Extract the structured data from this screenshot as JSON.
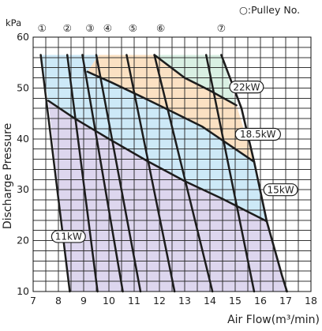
{
  "page": {
    "legend": "○:Pulley No."
  },
  "colors": {
    "plot_background": "#ffffff",
    "grid": "#2b2b2b",
    "line": "#1d1d1d",
    "region_11kw": "#ddd6ee",
    "region_15kw": "#cde9f7",
    "region_18_5kw": "#fbe1c3",
    "region_22kw": "#d9f0e3",
    "badge_fill": "#ffffff"
  },
  "chart_data": {
    "type": "line",
    "xlabel": "Air Flow(m³/min)",
    "ylabel": "Discharge Pressure",
    "unit_label": "kPa",
    "xlim": [
      7,
      18
    ],
    "ylim": [
      10,
      60
    ],
    "x_ticks": [
      7,
      8,
      9,
      10,
      11,
      12,
      13,
      14,
      15,
      16,
      17,
      18
    ],
    "y_ticks": [
      10,
      20,
      30,
      40,
      50,
      60
    ],
    "grid": true,
    "pulley_labels": [
      "①",
      "②",
      "③",
      "④",
      "⑤",
      "⑥",
      "⑦"
    ],
    "pulley_label_x": [
      7.35,
      8.35,
      9.25,
      9.95,
      10.95,
      12.05,
      14.45
    ],
    "pulley_series": [
      {
        "name": "①",
        "x": [
          7.3,
          8.45
        ],
        "y": [
          56.5,
          10
        ]
      },
      {
        "name": "②",
        "x": [
          8.35,
          9.55
        ],
        "y": [
          56.5,
          10
        ]
      },
      {
        "name": "③",
        "x": [
          8.95,
          10.55
        ],
        "y": [
          56.5,
          10
        ]
      },
      {
        "name": "④",
        "x": [
          9.5,
          11.25
        ],
        "y": [
          56.5,
          10
        ]
      },
      {
        "name": "⑤",
        "x": [
          10.7,
          12.6
        ],
        "y": [
          56.5,
          10
        ]
      },
      {
        "name": "⑥",
        "x": [
          11.8,
          14.1
        ],
        "y": [
          56.5,
          10
        ]
      },
      {
        "name": "⑦",
        "x": [
          13.85,
          15.75
        ],
        "y": [
          56.5,
          10
        ]
      }
    ],
    "outer_boundary": {
      "x": [
        14.45,
        15.25,
        15.75,
        16.25,
        16.85,
        17.05
      ],
      "y": [
        56.5,
        46.0,
        35.5,
        23.8,
        13.2,
        10.0
      ]
    },
    "bands": [
      {
        "label": "11kW",
        "fill_key": "region_11kw",
        "points": [
          [
            7.6,
            47.5
          ],
          [
            8.65,
            44.0
          ],
          [
            10.0,
            40.0
          ],
          [
            11.5,
            35.7
          ],
          [
            13.0,
            31.7
          ],
          [
            14.5,
            28.2
          ],
          [
            16.25,
            23.8
          ],
          [
            16.85,
            13.2
          ],
          [
            17.05,
            10.0
          ],
          [
            8.45,
            10.0
          ],
          [
            7.6,
            47.5
          ]
        ],
        "label_x": 8.4,
        "label_y": 20.8
      },
      {
        "label": "15kW",
        "fill_key": "region_15kw",
        "points": [
          [
            7.3,
            56.5
          ],
          [
            8.35,
            56.5
          ],
          [
            9.6,
            56.5
          ],
          [
            9.15,
            53.2
          ],
          [
            10.1,
            51.1
          ],
          [
            11.2,
            48.5
          ],
          [
            12.4,
            45.6
          ],
          [
            13.7,
            42.4
          ],
          [
            15.75,
            35.5
          ],
          [
            16.25,
            23.8
          ],
          [
            14.5,
            28.2
          ],
          [
            13.0,
            31.7
          ],
          [
            11.5,
            35.7
          ],
          [
            10.0,
            40.0
          ],
          [
            8.65,
            44.0
          ],
          [
            7.6,
            47.5
          ],
          [
            7.3,
            56.5
          ]
        ],
        "label_x": 16.8,
        "label_y": 30.0
      },
      {
        "label": "18.5kW",
        "fill_key": "region_18_5kw",
        "points": [
          [
            9.6,
            56.5
          ],
          [
            11.2,
            56.5
          ],
          [
            11.8,
            56.5
          ],
          [
            13.0,
            52.0
          ],
          [
            14.0,
            49.5
          ],
          [
            15.05,
            46.6
          ],
          [
            15.75,
            35.5
          ],
          [
            13.7,
            42.4
          ],
          [
            12.4,
            45.6
          ],
          [
            11.2,
            48.5
          ],
          [
            10.1,
            51.1
          ],
          [
            9.15,
            53.2
          ],
          [
            9.6,
            56.5
          ]
        ],
        "label_x": 15.9,
        "label_y": 40.9
      },
      {
        "label": "22kW",
        "fill_key": "region_22kw",
        "points": [
          [
            11.8,
            56.5
          ],
          [
            14.45,
            56.5
          ],
          [
            15.05,
            46.6
          ],
          [
            14.0,
            49.5
          ],
          [
            13.0,
            52.0
          ],
          [
            11.8,
            56.5
          ]
        ],
        "label_x": 15.45,
        "label_y": 50.2
      }
    ],
    "limit_curves": [
      {
        "name": "15kW limit",
        "x": [
          7.6,
          8.65,
          10.0,
          11.5,
          13.0,
          14.5,
          16.25
        ],
        "y": [
          47.5,
          44.0,
          40.0,
          35.7,
          31.7,
          28.2,
          23.8
        ]
      },
      {
        "name": "18.5kW limit",
        "x": [
          9.15,
          10.1,
          11.2,
          12.4,
          13.7,
          15.75
        ],
        "y": [
          53.2,
          51.1,
          48.5,
          45.6,
          42.4,
          35.5
        ]
      },
      {
        "name": "22kW limit",
        "x": [
          11.8,
          13.0,
          14.0,
          15.05
        ],
        "y": [
          56.5,
          52.0,
          49.5,
          46.6
        ]
      }
    ]
  }
}
